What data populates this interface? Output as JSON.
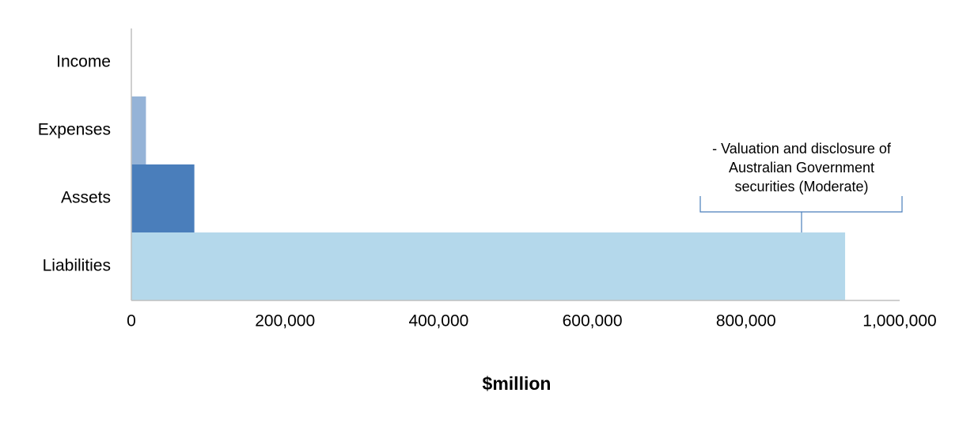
{
  "chart_data": {
    "type": "bar",
    "orientation": "horizontal",
    "categories": [
      "Income",
      "Expenses",
      "Assets",
      "Liabilities"
    ],
    "values": [
      0,
      19000,
      82000,
      929000
    ],
    "colors": [
      "#95b3d7",
      "#95b3d7",
      "#4a7ebb",
      "#b4d8eb"
    ],
    "xlabel": "$million",
    "xlim": [
      0,
      1000000
    ],
    "xticks": [
      0,
      {
        "value": 200000,
        "label": "200,000"
      },
      {
        "value": 400000,
        "label": "400,000"
      },
      {
        "value": 600000,
        "label": "600,000"
      },
      {
        "value": 800000,
        "label": "800,000"
      },
      {
        "value": 1000000,
        "label": "1,000,000"
      }
    ],
    "grid": false,
    "annotation": {
      "lines": [
        "- Valuation and disclosure of",
        "Australian Government",
        "securities (Moderate)"
      ]
    }
  }
}
